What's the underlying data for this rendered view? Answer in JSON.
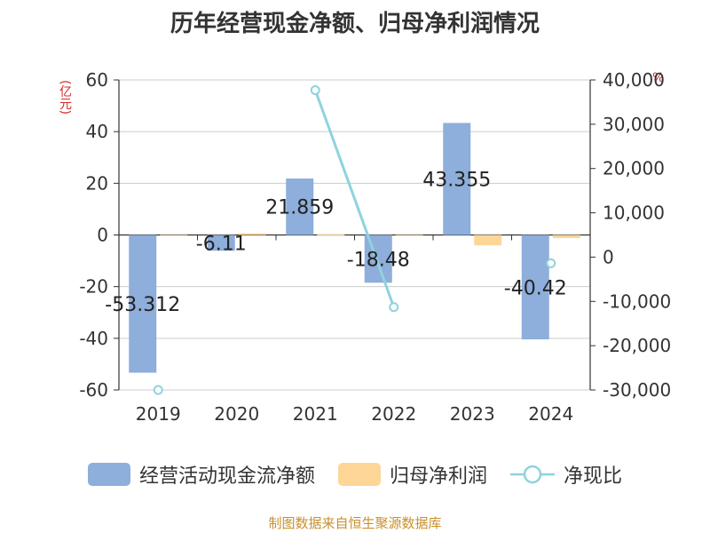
{
  "chart_data": {
    "type": "bar",
    "title": "历年经营现金净额、归母净利润情况",
    "categories": [
      "2019",
      "2020",
      "2021",
      "2022",
      "2023",
      "2024"
    ],
    "series": [
      {
        "name": "经营活动现金流净额",
        "type": "bar",
        "axis": "left",
        "color": "#8eaedb",
        "values": [
          -53.312,
          -6.11,
          21.859,
          -18.48,
          43.355,
          -40.42
        ],
        "labels": [
          "-53.312",
          "-6.11",
          "21.859",
          "-18.48",
          "43.355",
          "-40.42"
        ]
      },
      {
        "name": "归母净利润",
        "type": "bar",
        "axis": "left",
        "color": "#fdd698",
        "values": [
          -0.05,
          0.6,
          0.2,
          -0.2,
          -4.0,
          -1.2
        ]
      },
      {
        "name": "净现比",
        "type": "line",
        "axis": "right",
        "color": "#8fd3dd",
        "values": [
          -30000,
          null,
          37700,
          -11300,
          null,
          -1400
        ]
      }
    ],
    "ylabel_left": "(亿元)",
    "ylabel_right": "%",
    "ylim_left": [
      -60,
      60
    ],
    "yticks_left": [
      60,
      40,
      20,
      0,
      -20,
      -40,
      -60
    ],
    "ylim_right": [
      -30000,
      40000
    ],
    "yticks_right": [
      40000,
      30000,
      20000,
      10000,
      0,
      -10000,
      -20000,
      -30000
    ],
    "ytick_labels_right": [
      "40,000",
      "30,000",
      "20,000",
      "10,000",
      "0",
      "-10,000",
      "-20,000",
      "-30,000"
    ]
  },
  "legend": {
    "bar1": "经营活动现金流净额",
    "bar2": "归母净利润",
    "line": "净现比"
  },
  "colors": {
    "bar1": "#8eaedb",
    "bar2": "#fdd698",
    "line": "#8fd3dd"
  },
  "source": "制图数据来自恒生聚源数据库"
}
